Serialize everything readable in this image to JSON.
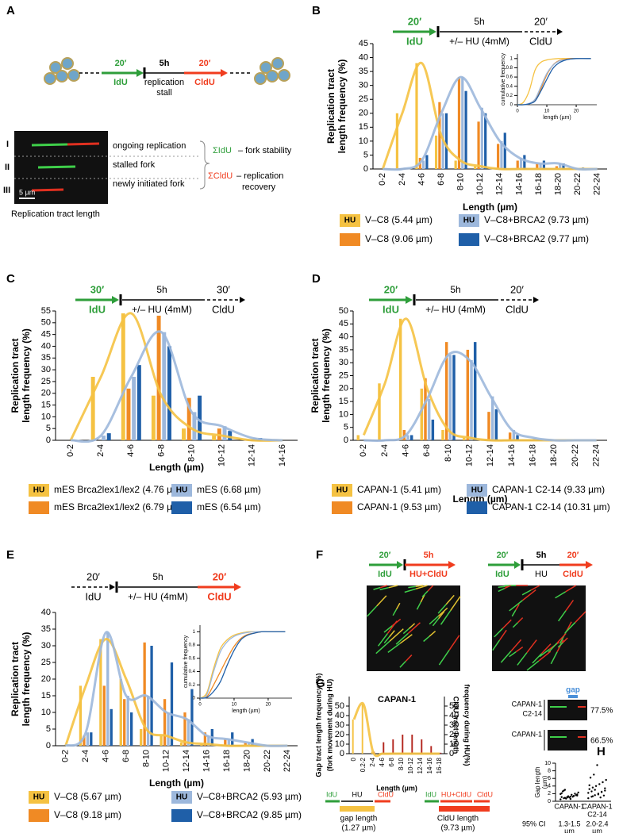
{
  "panel_labels": [
    "A",
    "B",
    "C",
    "D",
    "E",
    "F",
    "G",
    "H"
  ],
  "panel_A": {
    "t1": "20′",
    "l1": "IdU",
    "t2": "5h",
    "l2a": "replication",
    "l2b": "stall",
    "t3": "20′",
    "l3": "CldU",
    "rows": [
      "I",
      "II",
      "III"
    ],
    "row_texts": [
      "ongoing replication",
      "stalled fork",
      "newly initiated fork"
    ],
    "sum_idu": "ΣIdU",
    "sum_idu_text": "– fork stability",
    "sum_cldu": "ΣCldU",
    "sum_cldu_text": "– replication",
    "sum_cldu_text2": "recovery",
    "scale": "5 µm",
    "caption": "Replication tract length"
  },
  "panel_F": {
    "left": {
      "t1": "20′",
      "l1": "IdU",
      "t2": "5h",
      "l2": "HU+CldU"
    },
    "right": {
      "t1": "20′",
      "l1": "IdU",
      "t2": "5h",
      "l2": "HU",
      "t3": "20′",
      "l3": "CldU"
    }
  },
  "chart_data": [
    {
      "type": "bar",
      "protocol": [
        {
          "time": "20′",
          "label": "IdU",
          "color": "#2e9e3a",
          "dashed": false
        },
        {
          "time": "5h",
          "label": "+/– HU (4mM)",
          "color": "#000000",
          "dashed": false
        },
        {
          "time": "20′",
          "label": "CldU",
          "color": "#000000",
          "dashed": true
        }
      ],
      "ylabel": [
        "Replication tract",
        "length frequency  (%)"
      ],
      "xlabel": "Length (µm)",
      "categories": [
        "0-2",
        "2-4",
        "4-6",
        "6-8",
        "8-10",
        "10-12",
        "12-14",
        "14-16",
        "16-18",
        "18-20",
        "20-22",
        "22-24"
      ],
      "ylim": [
        0,
        45
      ],
      "yticks": [
        0,
        5,
        10,
        15,
        20,
        25,
        30,
        35,
        40,
        45
      ],
      "series": [
        {
          "name": "V–C8 (5.44 µm)",
          "badge": "HU",
          "color": "#f5c242",
          "fit": true,
          "values": [
            0,
            20,
            38,
            12,
            3,
            1,
            0,
            0,
            0,
            0,
            0,
            0
          ]
        },
        {
          "name": "V–C8 (9.06 µm)",
          "color": "#f08a24",
          "values": [
            0,
            0,
            4,
            24,
            33,
            17,
            9,
            3,
            2,
            1,
            0,
            0
          ]
        },
        {
          "name": "V–C8+BRCA2 (9.73 µm)",
          "badge": "HU",
          "color": "#9db8dc",
          "fit": true,
          "values": [
            0,
            0,
            3,
            20,
            33,
            22,
            10,
            4,
            2,
            2,
            0,
            0
          ]
        },
        {
          "name": "V–C8+BRCA2 (9.77 µm)",
          "color": "#1f5fa8",
          "values": [
            0,
            0,
            5,
            20,
            28,
            20,
            13,
            5,
            3,
            2,
            0.5,
            0
          ]
        }
      ],
      "inset": {
        "type": "line",
        "ylabel": "cumulative frequency",
        "xlabel": "length (µm)",
        "x": [
          0,
          2,
          4,
          6,
          8,
          10,
          12,
          14,
          16,
          18,
          20,
          25
        ],
        "xlim": [
          0,
          27
        ],
        "xticks": [
          0,
          10,
          20
        ],
        "ylim": [
          0,
          1.1
        ],
        "yticks": [
          0,
          0.2,
          0.4,
          0.6,
          0.8,
          1
        ],
        "series": [
          {
            "color": "#f5c242",
            "values": [
              0,
              0.05,
              0.3,
              0.75,
              0.92,
              0.97,
              0.99,
              1,
              1,
              1,
              1,
              1
            ]
          },
          {
            "color": "#f08a24",
            "values": [
              0,
              0,
              0.02,
              0.1,
              0.35,
              0.65,
              0.85,
              0.95,
              0.98,
              1,
              1,
              1
            ]
          },
          {
            "color": "#9db8dc",
            "values": [
              0,
              0,
              0.03,
              0.12,
              0.4,
              0.68,
              0.85,
              0.94,
              0.97,
              0.99,
              1,
              1
            ]
          },
          {
            "color": "#1f5fa8",
            "values": [
              0,
              0,
              0.02,
              0.08,
              0.3,
              0.55,
              0.78,
              0.9,
              0.96,
              0.99,
              1,
              1
            ]
          }
        ]
      }
    },
    {
      "type": "bar",
      "protocol": [
        {
          "time": "30′",
          "label": "IdU",
          "color": "#2e9e3a",
          "dashed": false
        },
        {
          "time": "5h",
          "label": "+/– HU (4mM)",
          "color": "#000000",
          "dashed": false
        },
        {
          "time": "30′",
          "label": "CldU",
          "color": "#000000",
          "dashed": true
        }
      ],
      "ylabel": [
        "Replication tract",
        "length frequency  (%)"
      ],
      "xlabel": "Length (µm)",
      "categories": [
        "0-2",
        "2-4",
        "4-6",
        "6-8",
        "8-10",
        "10-12",
        "12-14",
        "14-16"
      ],
      "ylim": [
        0,
        55
      ],
      "yticks": [
        0,
        5,
        10,
        15,
        20,
        25,
        30,
        35,
        40,
        45,
        50,
        55
      ],
      "series": [
        {
          "name": "mES Brca2lex1/lex2 (4.76 µm)",
          "badge": "HU",
          "color": "#f5c242",
          "fit": true,
          "values": [
            0,
            27,
            54,
            19,
            5,
            2,
            0,
            0
          ]
        },
        {
          "name": "mES Brca2lex1/lex2  (6.79 µm)",
          "color": "#f08a24",
          "values": [
            0,
            0,
            22,
            53,
            18,
            5,
            0,
            0
          ]
        },
        {
          "name": "mES   (6.68  µm)",
          "badge": "HU",
          "color": "#9db8dc",
          "fit": true,
          "values": [
            0,
            2,
            27,
            46,
            12,
            6,
            1,
            0
          ]
        },
        {
          "name": "mES   (6.54  µm)",
          "color": "#1f5fa8",
          "values": [
            0,
            3,
            32,
            40,
            19,
            4,
            1,
            0
          ]
        }
      ]
    },
    {
      "type": "bar",
      "protocol": [
        {
          "time": "20′",
          "label": "IdU",
          "color": "#2e9e3a",
          "dashed": false
        },
        {
          "time": "5h",
          "label": "+/– HU (4mM)",
          "color": "#000000",
          "dashed": false
        },
        {
          "time": "20′",
          "label": "CldU",
          "color": "#000000",
          "dashed": true
        }
      ],
      "ylabel": [
        "Replication tract",
        "length frequency  (%)"
      ],
      "xlabel": "Length (µm)",
      "categories": [
        "0-2",
        "2-4",
        "4-6",
        "6-8",
        "8-10",
        "10-12",
        "12-14",
        "14-16",
        "16-18",
        "18-20",
        "20-22",
        "22-24"
      ],
      "ylim": [
        0,
        50
      ],
      "yticks": [
        0,
        5,
        10,
        15,
        20,
        25,
        30,
        35,
        40,
        45,
        50
      ],
      "series": [
        {
          "name": "CAPAN-1 (5.41 µm)",
          "badge": "HU",
          "color": "#f5c242",
          "fit": true,
          "values": [
            2,
            22,
            47,
            20,
            4,
            1,
            0,
            0,
            0,
            0,
            0,
            0
          ]
        },
        {
          "name": "CAPAN-1 (9.53 µm)",
          "color": "#f08a24",
          "values": [
            0,
            0,
            4,
            24,
            38,
            35,
            11,
            3,
            0,
            0,
            0,
            0
          ]
        },
        {
          "name": "CAPAN-1 C2-14 (9.33 µm)",
          "badge": "HU",
          "color": "#9db8dc",
          "fit": true,
          "values": [
            0,
            0,
            2,
            16,
            33,
            31,
            17,
            4,
            1,
            0,
            0,
            0
          ]
        },
        {
          "name": "CAPAN-1 C2-14 (10.31 µm)",
          "color": "#1f5fa8",
          "values": [
            0,
            0,
            2,
            8,
            33,
            38,
            12,
            2,
            0,
            0,
            0,
            0
          ]
        }
      ]
    },
    {
      "type": "bar",
      "protocol": [
        {
          "time": "20′",
          "label": "IdU",
          "color": "#000000",
          "dashed": true
        },
        {
          "time": "5h",
          "label": "+/– HU (4mM)",
          "color": "#000000",
          "dashed": false
        },
        {
          "time": "20′",
          "label": "CldU",
          "color": "#f03c1e",
          "dashed": false
        }
      ],
      "ylabel": [
        "Replication tract",
        "length frequency (%)"
      ],
      "xlabel": "Length (µm)",
      "categories": [
        "0-2",
        "2-4",
        "4-6",
        "6-8",
        "8-10",
        "10-12",
        "12-14",
        "14-16",
        "16-18",
        "18-20",
        "20-22",
        "22-24"
      ],
      "ylim": [
        0,
        40
      ],
      "yticks": [
        0,
        5,
        10,
        15,
        20,
        25,
        30,
        35,
        40
      ],
      "series": [
        {
          "name": "V–C8   (5.67 µm)",
          "badge": "HU",
          "color": "#f5c242",
          "fit": true,
          "values": [
            0,
            18,
            32,
            20,
            5,
            3,
            1,
            0.5,
            0,
            0,
            0,
            0
          ]
        },
        {
          "name": "V–C8   (9.18 µm)",
          "color": "#f08a24",
          "values": [
            0,
            3,
            18,
            14,
            31,
            14,
            10,
            4,
            2,
            1,
            0,
            0
          ]
        },
        {
          "name": "V–C8+BRCA2 (5.93 µm)",
          "badge": "HU",
          "color": "#9db8dc",
          "fit": true,
          "values": [
            0,
            4,
            34,
            15,
            15,
            10,
            8,
            3,
            2,
            1,
            0,
            0
          ]
        },
        {
          "name": "V–C8+BRCA2 (9.85 µm)",
          "color": "#1f5fa8",
          "values": [
            0,
            4,
            11,
            10,
            30,
            25,
            17,
            5,
            4,
            2,
            0,
            0
          ]
        }
      ],
      "inset": {
        "type": "line",
        "ylabel": "cumulative frequency",
        "xlabel": "length (µm)",
        "x": [
          0,
          2,
          4,
          6,
          8,
          10,
          12,
          14,
          16,
          18,
          20,
          25
        ],
        "xlim": [
          0,
          27
        ],
        "xticks": [
          0,
          10,
          20
        ],
        "ylim": [
          0,
          1.1
        ],
        "yticks": [
          0,
          0.2,
          0.4,
          0.6,
          0.8,
          1
        ],
        "series": [
          {
            "color": "#f5c242",
            "values": [
              0,
              0.08,
              0.45,
              0.75,
              0.88,
              0.95,
              0.98,
              1,
              1,
              1,
              1,
              1
            ]
          },
          {
            "color": "#f08a24",
            "values": [
              0,
              0.02,
              0.2,
              0.4,
              0.6,
              0.78,
              0.9,
              0.96,
              0.98,
              1,
              1,
              1
            ]
          },
          {
            "color": "#9db8dc",
            "values": [
              0,
              0.05,
              0.4,
              0.7,
              0.85,
              0.93,
              0.97,
              0.99,
              1,
              1,
              1,
              1
            ]
          },
          {
            "color": "#1f5fa8",
            "values": [
              0,
              0.01,
              0.1,
              0.25,
              0.5,
              0.72,
              0.88,
              0.95,
              0.98,
              1,
              1,
              1
            ]
          }
        ]
      }
    },
    {
      "type": "bar",
      "title": "CAPAN-1",
      "ylabel": [
        "Gap tract length frequency (%)",
        "(fork movement during HU)"
      ],
      "y2label": [
        "CldU tract length",
        "frequency during HU(%)"
      ],
      "xlabel": "Length (µm)",
      "categories": [
        "0",
        "0.2-2",
        "2-4",
        "4-6",
        "6-8",
        "8-10",
        "10-12",
        "12-14",
        "14-16",
        "16-18"
      ],
      "ylim": [
        0,
        60
      ],
      "yticks": [
        0,
        10,
        20,
        30,
        40,
        50
      ],
      "y2lim": [
        0,
        60
      ],
      "y2ticks": [
        0,
        10,
        20,
        30,
        40,
        50
      ],
      "series": [
        {
          "color": "#f5c242",
          "fit": true,
          "values": [
            36,
            52,
            2,
            0,
            0,
            0,
            0,
            0,
            0,
            0
          ]
        },
        {
          "color": "#b3261e",
          "axis": "y2",
          "values": [
            0,
            0,
            2,
            12,
            15,
            20,
            20,
            15,
            8,
            1
          ]
        }
      ],
      "schemes": [
        {
          "labels": [
            "IdU",
            "HU",
            "CldU"
          ],
          "bar": "#f5c242",
          "caption": [
            "gap length",
            "(1.27 µm)"
          ]
        },
        {
          "labels": [
            "IdU",
            "HU+CldU",
            "CldU"
          ],
          "bar": "#f03c1e",
          "caption": [
            "CldU length",
            "(9.73 µm)"
          ]
        }
      ]
    },
    {
      "type": "strip",
      "gap_label": "gap",
      "images": [
        {
          "label": [
            "CAPAN-1",
            "C2-14"
          ],
          "percent": "77.5%"
        },
        {
          "label": [
            "CAPAN-1"
          ],
          "percent": "66.5%"
        }
      ],
      "ylabel": [
        "Gap length",
        "(µm)"
      ],
      "categories": [
        [
          "CAPAN-1"
        ],
        [
          "CAPAN-1",
          "C2-14"
        ]
      ],
      "ylim": [
        0,
        10
      ],
      "yticks": [
        0,
        2,
        4,
        6,
        8,
        10
      ],
      "ci_label": "95% CI",
      "ci": [
        [
          "1.3-1.5",
          "µm"
        ],
        [
          "2.0-2.4",
          "µm"
        ]
      ],
      "series": [
        {
          "color": "#000000",
          "values": [
            0.5,
            0.8,
            1.0,
            1.2,
            1.4,
            1.5,
            1.1,
            0.9,
            1.3,
            1.7,
            2.0,
            2.3,
            2.6,
            0.7,
            1.0,
            1.2,
            1.6,
            1.9,
            2.8,
            1.1,
            0.6,
            1.4,
            1.8,
            2.1,
            3.0
          ]
        },
        {
          "color": "#000000",
          "values": [
            0.8,
            1.2,
            1.6,
            2.0,
            2.4,
            2.8,
            3.2,
            3.6,
            4.0,
            4.5,
            5.0,
            5.6,
            6.2,
            7.0,
            9.5,
            1.0,
            1.5,
            2.2,
            2.6,
            3.0,
            1.8,
            2.5,
            3.4,
            4.2,
            1.3
          ]
        }
      ]
    }
  ]
}
